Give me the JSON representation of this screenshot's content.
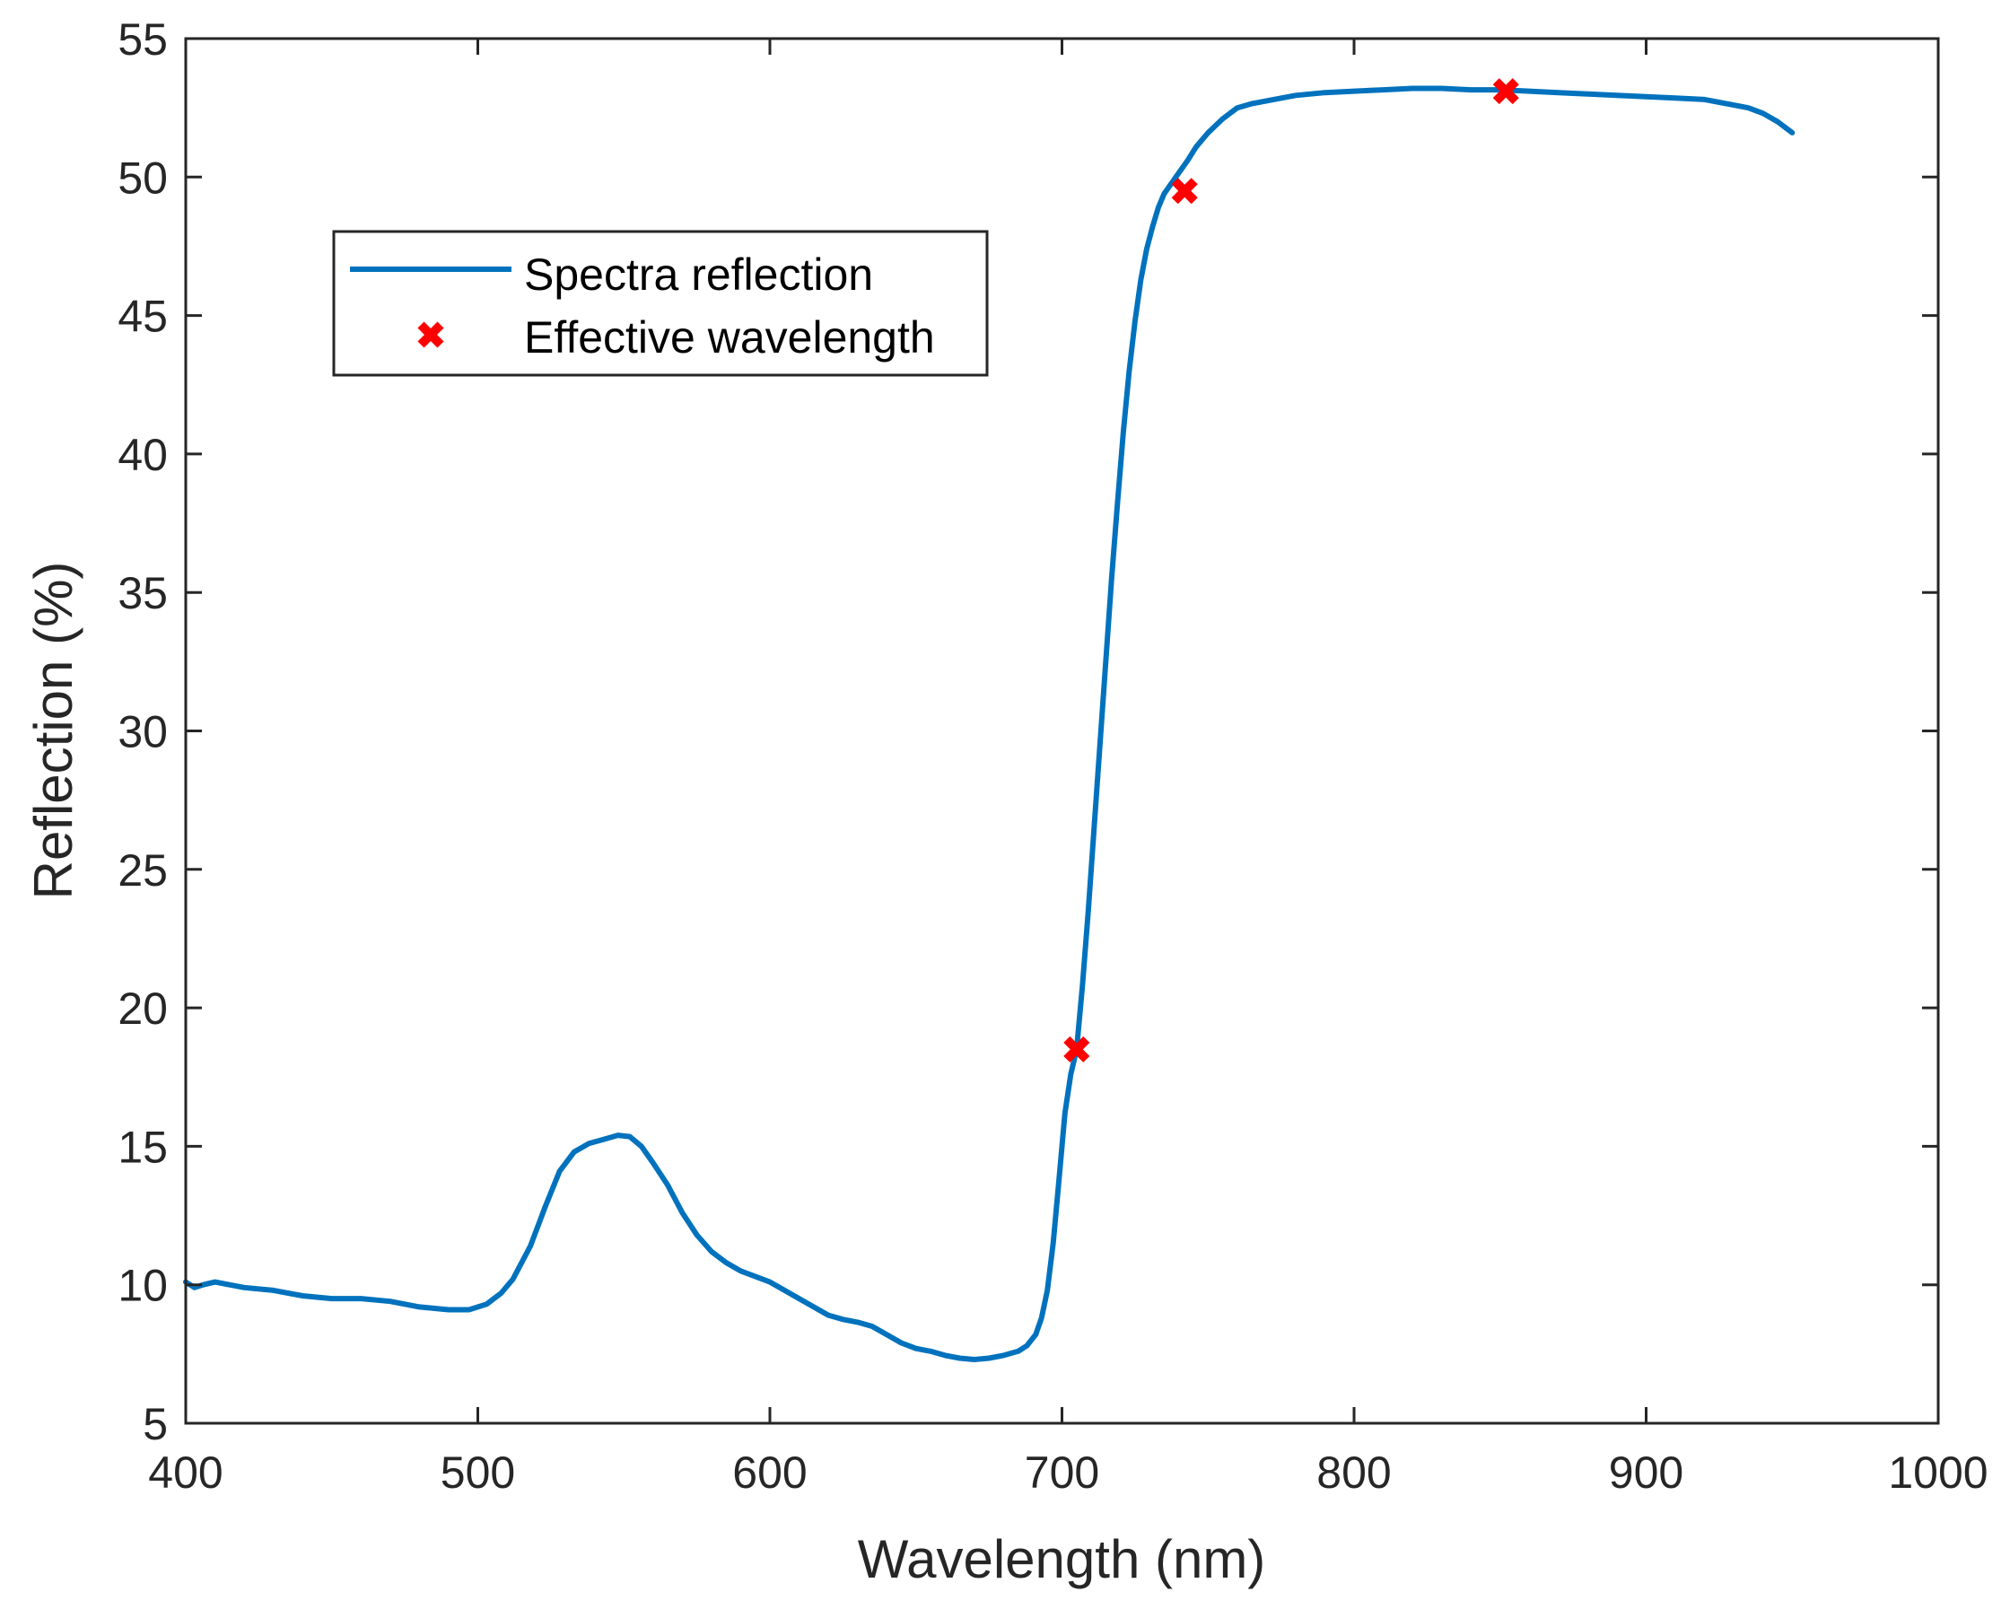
{
  "colors": {
    "series_line": "#0072BD",
    "marker": "#FF0000",
    "axis": "#262626",
    "background": "#FFFFFF"
  },
  "chart_data": {
    "type": "line",
    "title": "",
    "xlabel": "Wavelength (nm)",
    "ylabel": "Reflection (%)",
    "xlim": [
      400,
      1000
    ],
    "ylim": [
      5,
      55
    ],
    "xticks": [
      400,
      500,
      600,
      700,
      800,
      900,
      1000
    ],
    "yticks": [
      5,
      10,
      15,
      20,
      25,
      30,
      35,
      40,
      45,
      50,
      55
    ],
    "grid": false,
    "legend_position": "upper-left",
    "series": [
      {
        "name": "Spectra reflection",
        "kind": "line",
        "x": [
          400,
          403,
          406,
          410,
          415,
          420,
          430,
          440,
          450,
          460,
          470,
          480,
          490,
          497,
          503,
          508,
          512,
          518,
          523,
          528,
          533,
          538,
          543,
          548,
          552,
          556,
          560,
          565,
          570,
          575,
          580,
          585,
          590,
          595,
          600,
          605,
          610,
          615,
          620,
          625,
          630,
          635,
          640,
          645,
          650,
          655,
          660,
          665,
          670,
          675,
          680,
          685,
          688,
          691,
          693,
          695,
          697,
          699,
          701,
          703,
          705,
          707,
          709,
          711,
          713,
          715,
          717,
          719,
          721,
          723,
          725,
          727,
          729,
          731,
          733,
          735,
          737,
          739,
          741,
          743,
          746,
          750,
          755,
          760,
          765,
          770,
          780,
          790,
          800,
          810,
          820,
          830,
          840,
          850,
          860,
          870,
          880,
          890,
          900,
          910,
          920,
          930,
          935,
          940,
          945,
          950
        ],
        "values": [
          10.1,
          9.9,
          10.0,
          10.1,
          10.0,
          9.9,
          9.8,
          9.6,
          9.5,
          9.5,
          9.4,
          9.2,
          9.1,
          9.1,
          9.3,
          9.7,
          10.2,
          11.4,
          12.8,
          14.1,
          14.8,
          15.1,
          15.25,
          15.4,
          15.35,
          15.0,
          14.4,
          13.6,
          12.6,
          11.8,
          11.2,
          10.8,
          10.5,
          10.3,
          10.1,
          9.8,
          9.5,
          9.2,
          8.9,
          8.75,
          8.65,
          8.5,
          8.2,
          7.9,
          7.7,
          7.6,
          7.45,
          7.35,
          7.3,
          7.35,
          7.45,
          7.6,
          7.8,
          8.2,
          8.8,
          9.8,
          11.5,
          13.8,
          16.2,
          17.6,
          18.5,
          20.8,
          23.5,
          26.5,
          29.5,
          32.5,
          35.5,
          38.2,
          40.8,
          43.0,
          44.8,
          46.3,
          47.4,
          48.2,
          48.9,
          49.4,
          49.7,
          50.0,
          50.3,
          50.6,
          51.1,
          51.6,
          52.1,
          52.5,
          52.65,
          52.75,
          52.95,
          53.05,
          53.1,
          53.15,
          53.2,
          53.2,
          53.15,
          53.15,
          53.1,
          53.05,
          53.0,
          52.95,
          52.9,
          52.85,
          52.8,
          52.6,
          52.5,
          52.3,
          52.0,
          51.6
        ]
      },
      {
        "name": "Effective wavelength",
        "kind": "marker",
        "x": [
          705,
          742,
          852
        ],
        "values": [
          18.5,
          49.5,
          53.1
        ]
      }
    ]
  }
}
